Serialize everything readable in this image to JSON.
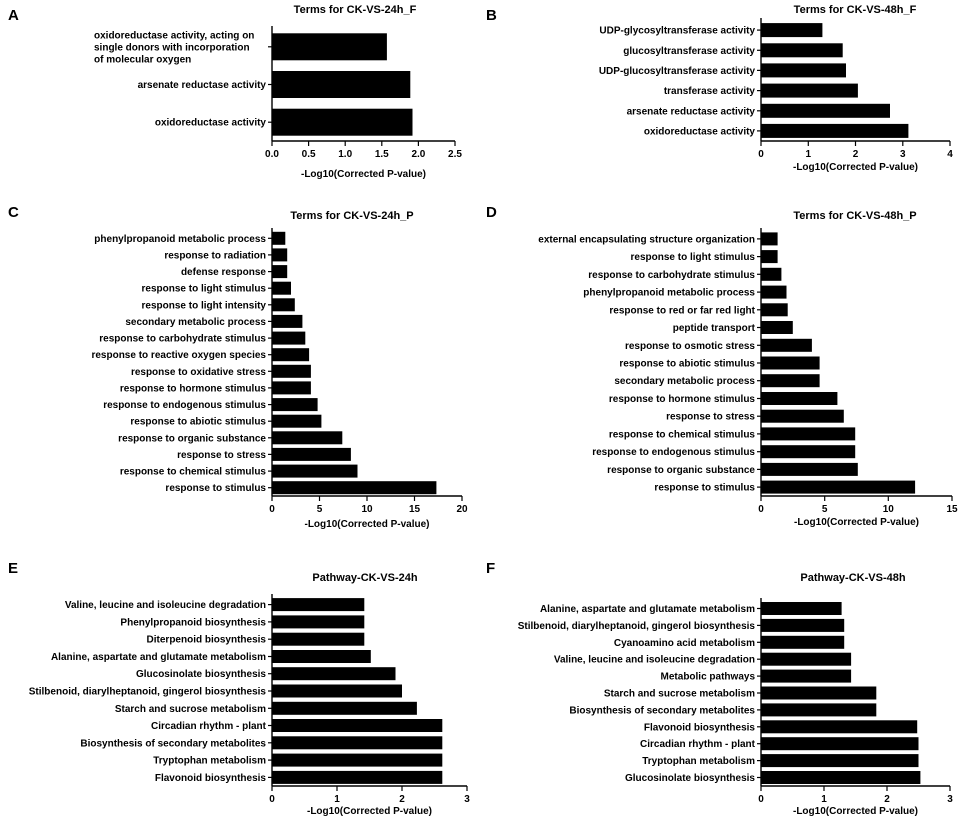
{
  "figure": {
    "panels": [
      "A",
      "B",
      "C",
      "D",
      "E",
      "F"
    ]
  },
  "chart_data": [
    {
      "panel": "A",
      "type": "bar",
      "orientation": "horizontal",
      "title": "Terms for CK-VS-24h_F",
      "xlabel": "-Log10(Corrected P-value)",
      "ylabel": "",
      "xlim": [
        0,
        2.5
      ],
      "xticks": [
        "0.0",
        "0.5",
        "1.0",
        "1.5",
        "2.0",
        "2.5"
      ],
      "categories": [
        [
          "oxidoreductase activity, acting on",
          "single donors with incorporation",
          "of molecular oxygen"
        ],
        "arsenate reductase activity",
        "oxidoreductase activity"
      ],
      "values": [
        1.57,
        1.89,
        1.92
      ]
    },
    {
      "panel": "B",
      "type": "bar",
      "orientation": "horizontal",
      "title": "Terms for CK-VS-48h_F",
      "xlabel": "-Log10(Corrected P-value)",
      "ylabel": "",
      "xlim": [
        0,
        4
      ],
      "xticks": [
        "0",
        "1",
        "2",
        "3",
        "4"
      ],
      "categories": [
        "UDP-glycosyltransferase activity",
        "glucosyltransferase activity",
        "UDP-glucosyltransferase activity",
        "transferase activity",
        "arsenate reductase activity",
        "oxidoreductase activity"
      ],
      "values": [
        1.3,
        1.73,
        1.8,
        2.05,
        2.73,
        3.12
      ]
    },
    {
      "panel": "C",
      "type": "bar",
      "orientation": "horizontal",
      "title": "Terms for CK-VS-24h_P",
      "xlabel": "-Log10(Corrected P-value)",
      "ylabel": "",
      "xlim": [
        0,
        20
      ],
      "xticks": [
        "0",
        "5",
        "10",
        "15",
        "20"
      ],
      "categories": [
        "phenylpropanoid metabolic process",
        "response to radiation",
        "defense response",
        "response to light stimulus",
        "response to light intensity",
        "secondary metabolic process",
        "response to carbohydrate stimulus",
        "response to reactive oxygen species",
        "response to oxidative stress",
        "response to hormone stimulus",
        "response to endogenous stimulus",
        "response to abiotic stimulus",
        "response to organic substance",
        "response to stress",
        "response to chemical stimulus",
        "response to stimulus"
      ],
      "values": [
        1.4,
        1.6,
        1.6,
        2.0,
        2.4,
        3.2,
        3.5,
        3.9,
        4.1,
        4.1,
        4.8,
        5.2,
        7.4,
        8.3,
        9.0,
        17.3
      ]
    },
    {
      "panel": "D",
      "type": "bar",
      "orientation": "horizontal",
      "title": "Terms for CK-VS-48h_P",
      "xlabel": "-Log10(Corrected P-value)",
      "ylabel": "",
      "xlim": [
        0,
        15
      ],
      "xticks": [
        "0",
        "5",
        "10",
        "15"
      ],
      "categories": [
        "external encapsulating structure organization",
        "response to light stimulus",
        "response to carbohydrate stimulus",
        "phenylpropanoid metabolic process",
        "response to red or far red light",
        "peptide transport",
        "response to osmotic stress",
        "response to abiotic stimulus",
        "secondary metabolic process",
        "response to hormone stimulus",
        "response to stress",
        "response to chemical stimulus",
        "response to endogenous stimulus",
        "response to organic substance",
        "response to stimulus"
      ],
      "values": [
        1.3,
        1.3,
        1.6,
        2.0,
        2.1,
        2.5,
        4.0,
        4.6,
        4.6,
        6.0,
        6.5,
        7.4,
        7.4,
        7.6,
        12.1
      ]
    },
    {
      "panel": "E",
      "type": "bar",
      "orientation": "horizontal",
      "title": "Pathway-CK-VS-24h",
      "xlabel": "-Log10(Corrected P-value)",
      "ylabel": "",
      "xlim": [
        0,
        3
      ],
      "xticks": [
        "0",
        "1",
        "2",
        "3"
      ],
      "categories": [
        "Valine, leucine and isoleucine degradation",
        "Phenylpropanoid biosynthesis",
        "Diterpenoid biosynthesis",
        "Alanine, aspartate and glutamate metabolism",
        "Glucosinolate biosynthesis",
        "Stilbenoid, diarylheptanoid, gingerol biosynthesis",
        "Starch and sucrose metabolism",
        "Circadian rhythm - plant",
        "Biosynthesis of secondary metabolites",
        "Tryptophan metabolism",
        "Flavonoid biosynthesis"
      ],
      "values": [
        1.42,
        1.42,
        1.42,
        1.52,
        1.9,
        2.0,
        2.23,
        2.62,
        2.62,
        2.62,
        2.62
      ]
    },
    {
      "panel": "F",
      "type": "bar",
      "orientation": "horizontal",
      "title": "Pathway-CK-VS-48h",
      "xlabel": "-Log10(Corrected P-value)",
      "ylabel": "",
      "xlim": [
        0,
        3
      ],
      "xticks": [
        "0",
        "1",
        "2",
        "3"
      ],
      "categories": [
        "Alanine, aspartate and glutamate metabolism",
        "Stilbenoid, diarylheptanoid, gingerol biosynthesis",
        "Cyanoamino acid metabolism",
        "Valine, leucine and isoleucine degradation",
        "Metabolic pathways",
        "Starch and sucrose metabolism",
        "Biosynthesis of secondary metabolites",
        "Flavonoid biosynthesis",
        "Circadian rhythm - plant",
        "Tryptophan metabolism",
        "Glucosinolate biosynthesis"
      ],
      "values": [
        1.28,
        1.32,
        1.32,
        1.43,
        1.43,
        1.83,
        1.83,
        2.48,
        2.5,
        2.5,
        2.53
      ]
    }
  ]
}
